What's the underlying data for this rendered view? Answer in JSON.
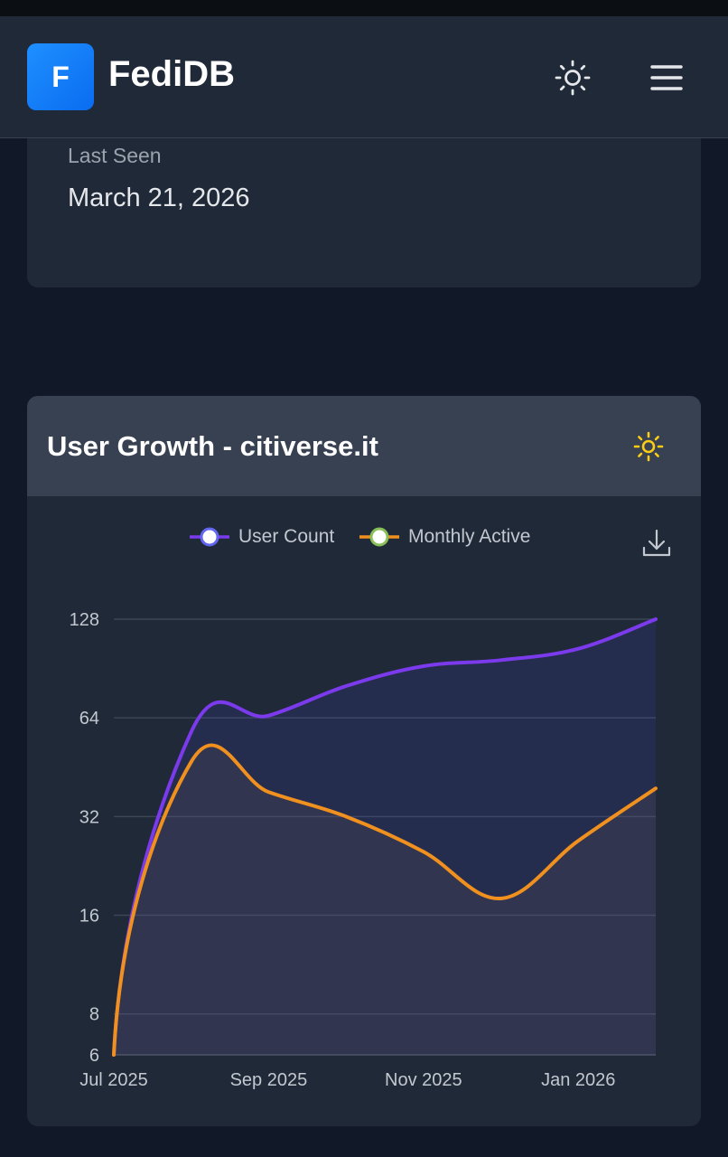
{
  "app": {
    "name": "FediDB",
    "logo_letter": "F"
  },
  "header": {
    "theme_icon": "sun-icon",
    "menu_icon": "hamburger-menu-icon"
  },
  "instance_info": {
    "last_seen_label": "Last Seen",
    "last_seen_value": "March 21, 2026"
  },
  "growth_card": {
    "title": "User Growth - citiverse.it",
    "theme_icon": "sun-icon",
    "download_icon": "download-icon",
    "accent_colors": {
      "card_header": "#374151",
      "sun": "#facc15"
    }
  },
  "chart_data": {
    "type": "line",
    "title": "User Growth - citiverse.it",
    "y_scale": "log2",
    "ylim": [
      6,
      128
    ],
    "y_ticks": [
      6,
      8,
      16,
      32,
      64,
      128
    ],
    "x_ticks": [
      "Jul 2025",
      "Sep 2025",
      "Nov 2025",
      "Jan 2026"
    ],
    "x": [
      "Jul 2025",
      "Aug 2025",
      "Sep 2025",
      "Oct 2025",
      "Nov 2025",
      "Dec 2025",
      "Jan 2026",
      "Feb 2026"
    ],
    "legend": [
      "User Count",
      "Monthly Active"
    ],
    "series": [
      {
        "name": "User Count",
        "color": "#7c3aed",
        "marker_fill": "#ffffff",
        "values": [
          6,
          58,
          65,
          80,
          92,
          96,
          104,
          128
        ]
      },
      {
        "name": "Monthly Active",
        "color": "#f0901e",
        "marker_fill": "#86c057",
        "values": [
          6,
          47,
          38,
          32,
          25,
          18,
          27,
          39
        ]
      }
    ]
  }
}
